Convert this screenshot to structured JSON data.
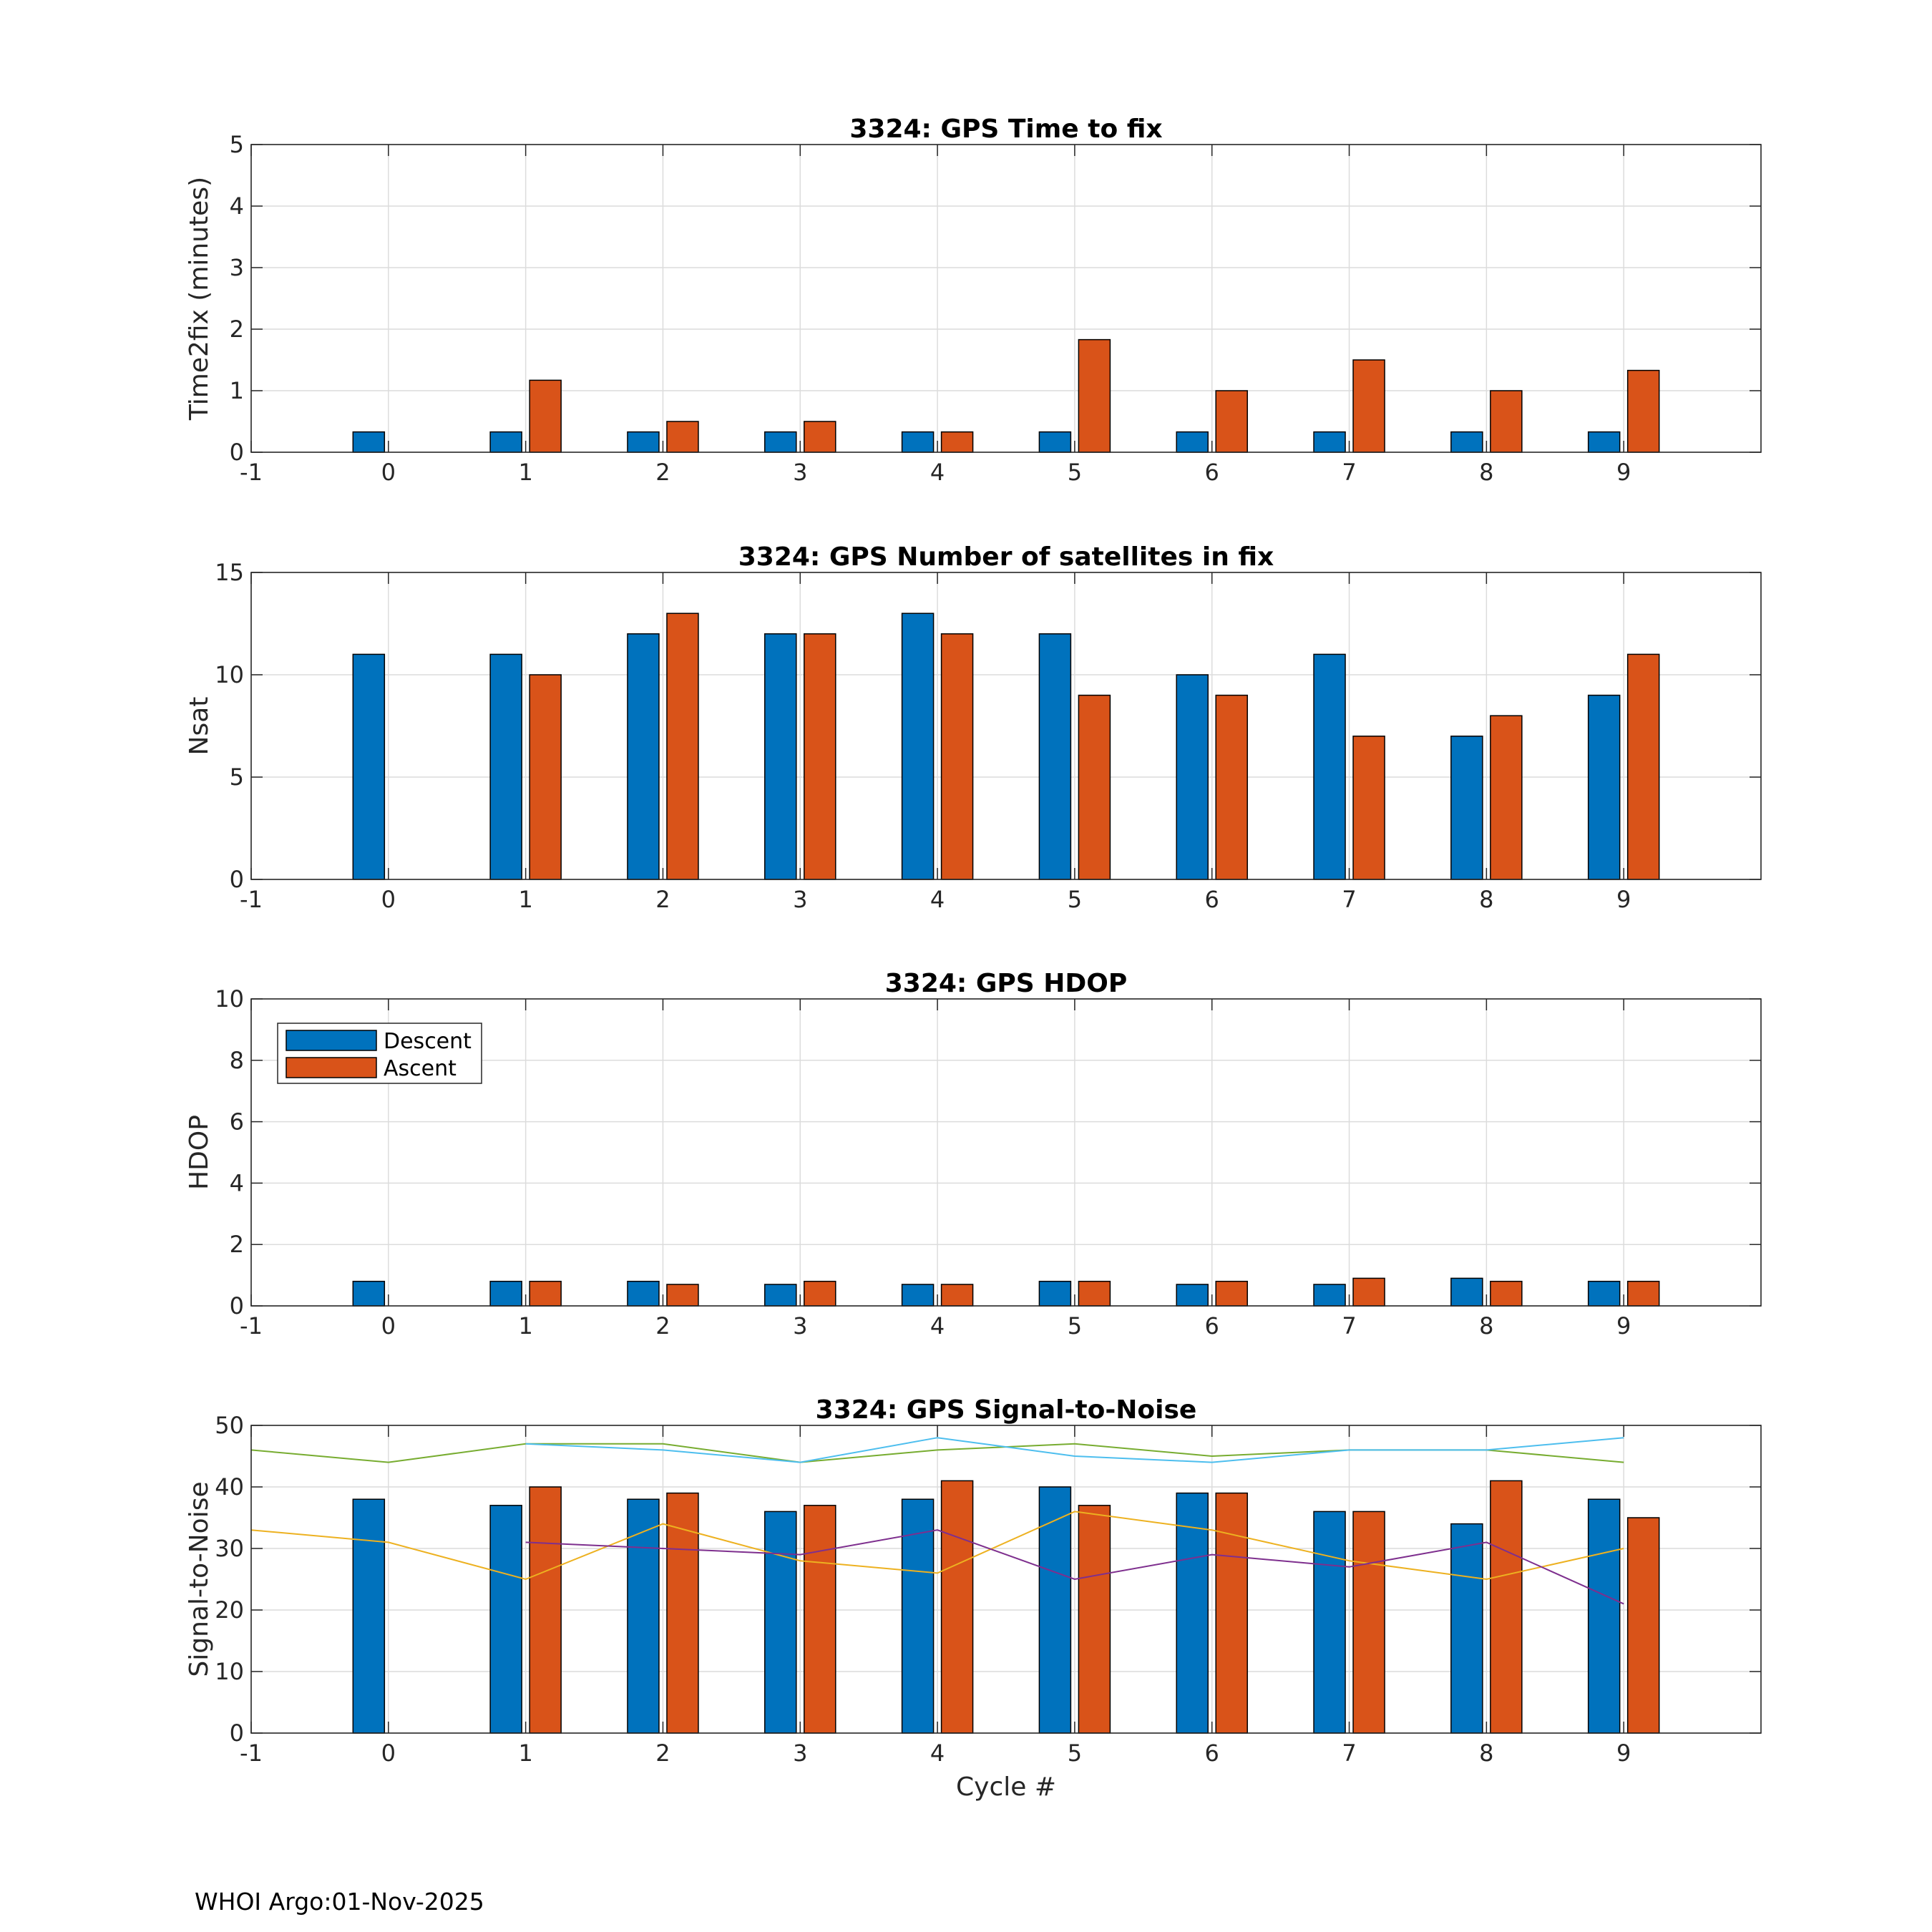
{
  "footer": "WHOI Argo:01-Nov-2025",
  "legend": {
    "descent": "Descent",
    "ascent": "Ascent"
  },
  "colors": {
    "descent": "#0072BD",
    "ascent": "#D95319"
  },
  "chart_data": [
    {
      "type": "bar",
      "title": "3324: GPS Time to fix",
      "xlabel": "",
      "ylabel": "Time2fix (minutes)",
      "xlim": [
        -1,
        10
      ],
      "ylim": [
        0,
        5
      ],
      "xticks": [
        -1,
        0,
        1,
        2,
        3,
        4,
        5,
        6,
        7,
        8,
        9
      ],
      "yticks": [
        0,
        1,
        2,
        3,
        4,
        5
      ],
      "grid": true,
      "categories": [
        0,
        1,
        2,
        3,
        4,
        5,
        6,
        7,
        8,
        9
      ],
      "series": [
        {
          "name": "Descent",
          "values": [
            0.33,
            0.33,
            0.33,
            0.33,
            0.33,
            0.33,
            0.33,
            0.33,
            0.33,
            0.33
          ]
        },
        {
          "name": "Ascent",
          "values": [
            null,
            1.17,
            0.5,
            0.5,
            0.33,
            1.83,
            1.0,
            1.5,
            1.0,
            1.33
          ]
        }
      ]
    },
    {
      "type": "bar",
      "title": "3324: GPS Number of satellites in fix",
      "xlabel": "",
      "ylabel": "Nsat",
      "xlim": [
        -1,
        10
      ],
      "ylim": [
        0,
        15
      ],
      "xticks": [
        -1,
        0,
        1,
        2,
        3,
        4,
        5,
        6,
        7,
        8,
        9
      ],
      "yticks": [
        0,
        5,
        10,
        15
      ],
      "grid": true,
      "categories": [
        0,
        1,
        2,
        3,
        4,
        5,
        6,
        7,
        8,
        9
      ],
      "series": [
        {
          "name": "Descent",
          "values": [
            11,
            11,
            12,
            12,
            13,
            12,
            10,
            11,
            7,
            9
          ]
        },
        {
          "name": "Ascent",
          "values": [
            null,
            10,
            13,
            12,
            12,
            9,
            9,
            7,
            8,
            11
          ]
        }
      ]
    },
    {
      "type": "bar",
      "title": "3324: GPS HDOP",
      "xlabel": "",
      "ylabel": "HDOP",
      "xlim": [
        -1,
        10
      ],
      "ylim": [
        0,
        10
      ],
      "xticks": [
        -1,
        0,
        1,
        2,
        3,
        4,
        5,
        6,
        7,
        8,
        9
      ],
      "yticks": [
        0,
        2,
        4,
        6,
        8,
        10
      ],
      "grid": true,
      "legend_position": "top-left",
      "categories": [
        0,
        1,
        2,
        3,
        4,
        5,
        6,
        7,
        8,
        9
      ],
      "series": [
        {
          "name": "Descent",
          "values": [
            0.8,
            0.8,
            0.8,
            0.7,
            0.7,
            0.8,
            0.7,
            0.7,
            0.9,
            0.8
          ]
        },
        {
          "name": "Ascent",
          "values": [
            null,
            0.8,
            0.7,
            0.8,
            0.7,
            0.8,
            0.8,
            0.9,
            0.8,
            0.8
          ]
        }
      ]
    },
    {
      "type": "bar",
      "title": "3324: GPS Signal-to-Noise",
      "xlabel": "Cycle #",
      "ylabel": "Signal-to-Noise",
      "xlim": [
        -1,
        10
      ],
      "ylim": [
        0,
        50
      ],
      "xticks": [
        -1,
        0,
        1,
        2,
        3,
        4,
        5,
        6,
        7,
        8,
        9
      ],
      "yticks": [
        0,
        10,
        20,
        30,
        40,
        50
      ],
      "grid": true,
      "categories": [
        0,
        1,
        2,
        3,
        4,
        5,
        6,
        7,
        8,
        9
      ],
      "series": [
        {
          "name": "Descent",
          "values": [
            38,
            37,
            38,
            36,
            38,
            40,
            39,
            36,
            34,
            38
          ]
        },
        {
          "name": "Ascent",
          "values": [
            null,
            40,
            39,
            37,
            41,
            37,
            39,
            36,
            41,
            35
          ]
        }
      ],
      "lines": [
        {
          "color": "#77AC30",
          "x": [
            -1,
            0,
            1,
            2,
            3,
            4,
            5,
            6,
            7,
            8,
            9
          ],
          "y": [
            46,
            44,
            47,
            47,
            44,
            46,
            47,
            45,
            46,
            46,
            44
          ]
        },
        {
          "color": "#4DBEEE",
          "x": [
            1,
            2,
            3,
            4,
            5,
            6,
            7,
            8,
            9
          ],
          "y": [
            47,
            46,
            44,
            48,
            45,
            44,
            46,
            46,
            48
          ]
        },
        {
          "color": "#EDB120",
          "x": [
            -1,
            0,
            1,
            2,
            3,
            4,
            5,
            6,
            7,
            8,
            9
          ],
          "y": [
            33,
            31,
            25,
            34,
            28,
            26,
            36,
            33,
            28,
            25,
            30
          ]
        },
        {
          "color": "#7E2F8E",
          "x": [
            1,
            2,
            3,
            4,
            5,
            6,
            7,
            8,
            9
          ],
          "y": [
            31,
            30,
            29,
            33,
            25,
            29,
            27,
            31,
            21
          ]
        }
      ]
    }
  ]
}
